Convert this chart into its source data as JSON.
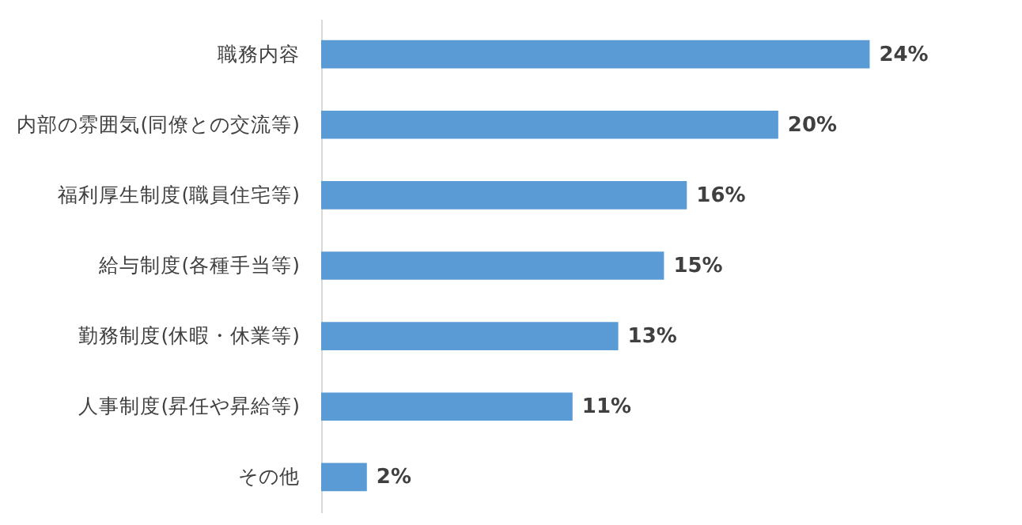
{
  "chart_data": {
    "type": "bar",
    "orientation": "horizontal",
    "categories": [
      "職務内容",
      "内部の雰囲気(同僚との交流等)",
      "福利厚生制度(職員住宅等)",
      "給与制度(各種手当等)",
      "勤務制度(休暇・休業等)",
      "人事制度(昇任や昇給等)",
      "その他"
    ],
    "values": [
      24,
      20,
      16,
      15,
      13,
      11,
      2
    ],
    "value_labels": [
      "24%",
      "20%",
      "16%",
      "15%",
      "13%",
      "11%",
      "2%"
    ],
    "color": "#5b9bd5",
    "tick_labels": "y"
  }
}
